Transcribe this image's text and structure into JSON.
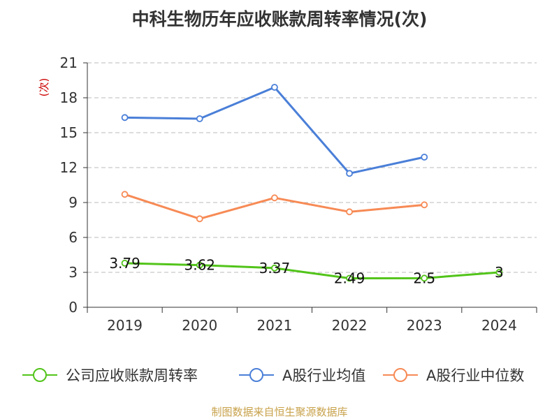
{
  "chart_data": {
    "type": "line",
    "title": "中科生物历年应收账款周转率情况(次)",
    "ylabel": "(次)",
    "xlabel": "",
    "categories": [
      "2019",
      "2020",
      "2021",
      "2022",
      "2023",
      "2024"
    ],
    "ylim": [
      0,
      21
    ],
    "yticks": [
      0,
      3,
      6,
      9,
      12,
      15,
      18,
      21
    ],
    "grid": true,
    "legend_position": "bottom",
    "series": [
      {
        "name": "公司应收账款周转率",
        "color": "#52c41a",
        "values": [
          3.79,
          3.62,
          3.37,
          2.49,
          2.5,
          3
        ],
        "data_labels": [
          "3.79",
          "3.62",
          "3.37",
          "2.49",
          "2.5",
          "3"
        ]
      },
      {
        "name": "A股行业均值",
        "color": "#4a7fd8",
        "values": [
          16.3,
          16.2,
          18.9,
          11.5,
          12.9,
          null
        ]
      },
      {
        "name": "A股行业中位数",
        "color": "#f78a55",
        "values": [
          9.7,
          7.6,
          9.4,
          8.2,
          8.8,
          null
        ]
      }
    ]
  },
  "footer": {
    "source": "制图数据来自恒生聚源数据库"
  }
}
